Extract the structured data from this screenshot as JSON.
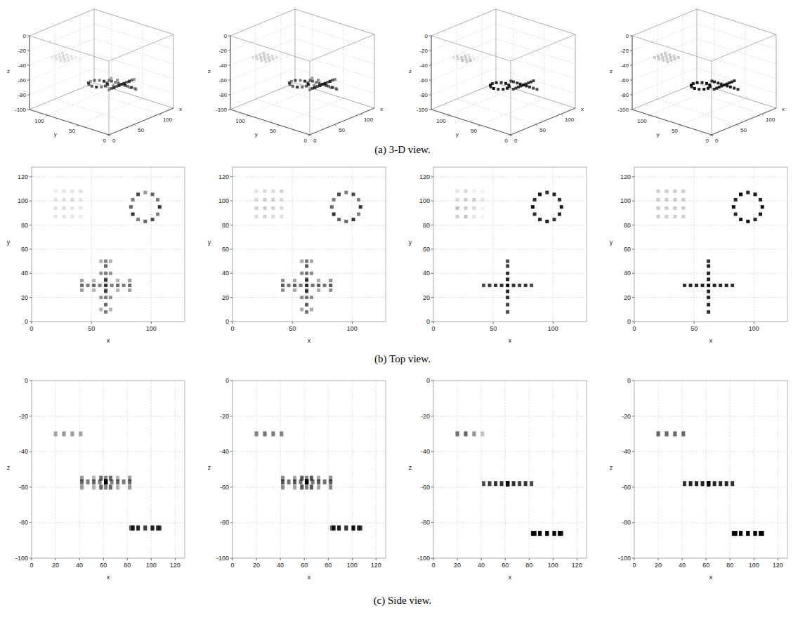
{
  "chart_data": [
    {
      "type": "scatter3d",
      "xlabel": "x",
      "ylabel": "y",
      "zlabel": "z",
      "xlim": [
        0,
        128
      ],
      "ylim": [
        0,
        128
      ],
      "zlim": [
        -100,
        0
      ],
      "grid": true,
      "series": [
        {
          "x": [
            20,
            27,
            34,
            41,
            20,
            27,
            34,
            41,
            20,
            27,
            34,
            41,
            20,
            27,
            34,
            41
          ],
          "y": [
            87,
            87,
            87,
            87,
            94,
            94,
            94,
            94,
            101,
            101,
            101,
            101,
            108,
            108,
            108,
            108
          ],
          "z": [
            -30,
            -30,
            -30,
            -30,
            -30,
            -30,
            -30,
            -30,
            -30,
            -30,
            -30,
            -30,
            -30,
            -30,
            -30,
            -30
          ],
          "values": [
            0.1,
            0.12,
            0.1,
            0.08,
            0.12,
            0.15,
            0.1,
            0.1,
            0.1,
            0.12,
            0.14,
            0.1,
            0.08,
            0.1,
            0.1,
            0.12
          ]
        },
        {
          "x": [
            107,
            105.4,
            101,
            95,
            89,
            84.6,
            83,
            84.6,
            89,
            95,
            101,
            105.4
          ],
          "y": [
            95,
            101,
            105.4,
            107,
            105.4,
            101,
            95,
            89,
            84.6,
            83,
            84.6,
            89
          ],
          "z": [
            -83,
            -83,
            -83,
            -83,
            -83,
            -83,
            -83,
            -83,
            -83,
            -83,
            -83,
            -83
          ],
          "values": [
            0.8,
            0.5,
            0.6,
            0.4,
            0.7,
            0.5,
            0.6,
            0.8,
            0.5,
            0.6,
            0.7,
            0.5
          ]
        },
        {
          "x": [
            42,
            47,
            52,
            57,
            62,
            67,
            72,
            77,
            82,
            62,
            62,
            62,
            62,
            62,
            62,
            62,
            62,
            42,
            52,
            62,
            72,
            82,
            42,
            52,
            62,
            72,
            82,
            58,
            58,
            58,
            58,
            66,
            66,
            66,
            66
          ],
          "y": [
            30,
            30,
            30,
            30,
            30,
            30,
            30,
            30,
            30,
            8,
            14,
            20,
            25,
            35,
            40,
            46,
            50,
            26,
            26,
            26,
            26,
            26,
            34,
            34,
            34,
            34,
            34,
            10,
            20,
            40,
            50,
            10,
            20,
            40,
            50
          ],
          "z": [
            -57,
            -57,
            -57,
            -57,
            -57,
            -57,
            -57,
            -57,
            -57,
            -57,
            -57,
            -57,
            -57,
            -57,
            -57,
            -57,
            -57,
            -55,
            -55,
            -55,
            -55,
            -55,
            -60,
            -60,
            -60,
            -60,
            -60,
            -55,
            -55,
            -60,
            -60,
            -60,
            -60,
            -55,
            -55
          ],
          "values": [
            0.6,
            0.5,
            0.6,
            0.5,
            0.8,
            0.5,
            0.6,
            0.5,
            0.6,
            0.5,
            0.6,
            0.5,
            0.6,
            0.6,
            0.5,
            0.6,
            0.5,
            0.4,
            0.3,
            0.5,
            0.3,
            0.4,
            0.4,
            0.3,
            0.5,
            0.3,
            0.4,
            0.3,
            0.4,
            0.4,
            0.3,
            0.3,
            0.4,
            0.4,
            0.3
          ]
        }
      ]
    },
    {
      "type": "scatter3d",
      "xlabel": "x",
      "ylabel": "y",
      "zlabel": "z",
      "xlim": [
        0,
        128
      ],
      "ylim": [
        0,
        128
      ],
      "zlim": [
        -100,
        0
      ],
      "grid": true,
      "series": [
        {
          "x": [
            20,
            27,
            34,
            41,
            20,
            27,
            34,
            41,
            20,
            27,
            34,
            41,
            20,
            27,
            34,
            41
          ],
          "y": [
            87,
            87,
            87,
            87,
            94,
            94,
            94,
            94,
            101,
            101,
            101,
            101,
            108,
            108,
            108,
            108
          ],
          "z": [
            -30,
            -30,
            -30,
            -30,
            -30,
            -30,
            -30,
            -30,
            -30,
            -30,
            -30,
            -30,
            -30,
            -30,
            -30,
            -30
          ],
          "values": [
            0.15,
            0.18,
            0.15,
            0.12,
            0.18,
            0.2,
            0.18,
            0.15,
            0.15,
            0.2,
            0.18,
            0.15,
            0.12,
            0.15,
            0.15,
            0.18
          ]
        },
        {
          "x": [
            107,
            105.4,
            101,
            95,
            89,
            84.6,
            83,
            84.6,
            89,
            95,
            101,
            105.4
          ],
          "y": [
            95,
            101,
            105.4,
            107,
            105.4,
            101,
            95,
            89,
            84.6,
            83,
            84.6,
            89
          ],
          "z": [
            -83,
            -83,
            -83,
            -83,
            -83,
            -83,
            -83,
            -83,
            -83,
            -83,
            -83,
            -83
          ],
          "values": [
            0.8,
            0.5,
            0.7,
            0.5,
            0.7,
            0.5,
            0.6,
            0.8,
            0.6,
            0.6,
            0.8,
            0.5
          ]
        },
        {
          "x": [
            42,
            47,
            52,
            57,
            62,
            67,
            72,
            77,
            82,
            62,
            62,
            62,
            62,
            62,
            62,
            62,
            62,
            42,
            52,
            62,
            72,
            82,
            42,
            52,
            62,
            72,
            82,
            58,
            58,
            58,
            58,
            66,
            66,
            66,
            66
          ],
          "y": [
            30,
            30,
            30,
            30,
            30,
            30,
            30,
            30,
            30,
            8,
            14,
            20,
            25,
            35,
            40,
            46,
            50,
            26,
            26,
            26,
            26,
            26,
            34,
            34,
            34,
            34,
            34,
            10,
            20,
            40,
            50,
            10,
            20,
            40,
            50
          ],
          "z": [
            -57,
            -57,
            -57,
            -57,
            -57,
            -57,
            -57,
            -57,
            -57,
            -57,
            -57,
            -57,
            -57,
            -57,
            -57,
            -57,
            -57,
            -55,
            -55,
            -55,
            -55,
            -55,
            -60,
            -60,
            -60,
            -60,
            -60,
            -55,
            -55,
            -60,
            -60,
            -60,
            -60,
            -55,
            -55
          ],
          "values": [
            0.65,
            0.55,
            0.65,
            0.55,
            0.85,
            0.55,
            0.65,
            0.55,
            0.65,
            0.55,
            0.65,
            0.55,
            0.65,
            0.65,
            0.55,
            0.65,
            0.55,
            0.45,
            0.35,
            0.5,
            0.35,
            0.45,
            0.45,
            0.35,
            0.5,
            0.35,
            0.45,
            0.35,
            0.45,
            0.45,
            0.35,
            0.35,
            0.45,
            0.45,
            0.35
          ]
        }
      ]
    },
    {
      "type": "scatter3d",
      "xlabel": "x",
      "ylabel": "y",
      "zlabel": "z",
      "xlim": [
        0,
        128
      ],
      "ylim": [
        0,
        128
      ],
      "zlim": [
        -100,
        0
      ],
      "grid": true,
      "series": [
        {
          "x": [
            20,
            27,
            34,
            41,
            20,
            27,
            34,
            41,
            20,
            27,
            34,
            41,
            20,
            27,
            34,
            41
          ],
          "y": [
            87,
            87,
            87,
            87,
            94,
            94,
            94,
            94,
            101,
            101,
            101,
            101,
            108,
            108,
            108,
            108
          ],
          "z": [
            -30,
            -30,
            -30,
            -30,
            -30,
            -30,
            -30,
            -30,
            -30,
            -30,
            -30,
            -30,
            -30,
            -30,
            -30,
            -30
          ],
          "values": [
            0.2,
            0.25,
            0.1,
            0.05,
            0.25,
            0.2,
            0.15,
            0.05,
            0.15,
            0.2,
            0.2,
            0.1,
            0.1,
            0.15,
            0.05,
            0.05
          ]
        },
        {
          "x": [
            107,
            105.4,
            101,
            95,
            89,
            84.6,
            83,
            84.6,
            89,
            95,
            101,
            105.4
          ],
          "y": [
            95,
            101,
            105.4,
            107,
            105.4,
            101,
            95,
            89,
            84.6,
            83,
            84.6,
            89
          ],
          "z": [
            -86,
            -86,
            -86,
            -86,
            -86,
            -86,
            -86,
            -86,
            -86,
            -86,
            -86,
            -86
          ],
          "values": [
            0.9,
            0.8,
            0.85,
            0.8,
            0.9,
            0.8,
            0.95,
            0.8,
            0.85,
            0.9,
            0.8,
            0.85
          ]
        },
        {
          "x": [
            42,
            47,
            52,
            57,
            62,
            67,
            72,
            77,
            82,
            62,
            62,
            62,
            62,
            62,
            62,
            62,
            62
          ],
          "y": [
            30,
            30,
            30,
            30,
            30,
            30,
            30,
            30,
            30,
            8,
            14,
            20,
            25,
            35,
            40,
            46,
            50
          ],
          "z": [
            -58,
            -58,
            -58,
            -58,
            -58,
            -58,
            -58,
            -58,
            -58,
            -58,
            -58,
            -58,
            -58,
            -58,
            -58,
            -58,
            -58
          ],
          "values": [
            0.7,
            0.75,
            0.8,
            0.8,
            0.95,
            0.8,
            0.75,
            0.8,
            0.7,
            0.7,
            0.75,
            0.8,
            0.85,
            0.85,
            0.8,
            0.75,
            0.7
          ]
        }
      ]
    },
    {
      "type": "scatter3d",
      "xlabel": "x",
      "ylabel": "y",
      "zlabel": "z",
      "xlim": [
        0,
        128
      ],
      "ylim": [
        0,
        128
      ],
      "zlim": [
        -100,
        0
      ],
      "grid": true,
      "series": [
        {
          "x": [
            20,
            27,
            34,
            41,
            20,
            27,
            34,
            41,
            20,
            27,
            34,
            41,
            20,
            27,
            34,
            41
          ],
          "y": [
            87,
            87,
            87,
            87,
            94,
            94,
            94,
            94,
            101,
            101,
            101,
            101,
            108,
            108,
            108,
            108
          ],
          "z": [
            -30,
            -30,
            -30,
            -30,
            -30,
            -30,
            -30,
            -30,
            -30,
            -30,
            -30,
            -30,
            -30,
            -30,
            -30,
            -30
          ],
          "values": [
            0.2,
            0.2,
            0.2,
            0.2,
            0.2,
            0.2,
            0.2,
            0.2,
            0.2,
            0.2,
            0.2,
            0.2,
            0.2,
            0.2,
            0.2,
            0.2
          ]
        },
        {
          "x": [
            107,
            105.4,
            101,
            95,
            89,
            84.6,
            83,
            84.6,
            89,
            95,
            101,
            105.4
          ],
          "y": [
            95,
            101,
            105.4,
            107,
            105.4,
            101,
            95,
            89,
            84.6,
            83,
            84.6,
            89
          ],
          "z": [
            -86,
            -86,
            -86,
            -86,
            -86,
            -86,
            -86,
            -86,
            -86,
            -86,
            -86,
            -86
          ],
          "values": [
            0.95,
            0.85,
            0.9,
            0.85,
            0.95,
            0.85,
            0.95,
            0.85,
            0.9,
            0.95,
            0.85,
            0.9
          ]
        },
        {
          "x": [
            42,
            47,
            52,
            57,
            62,
            67,
            72,
            77,
            82,
            62,
            62,
            62,
            62,
            62,
            62,
            62,
            62
          ],
          "y": [
            30,
            30,
            30,
            30,
            30,
            30,
            30,
            30,
            30,
            8,
            14,
            20,
            25,
            35,
            40,
            46,
            50
          ],
          "z": [
            -58,
            -58,
            -58,
            -58,
            -58,
            -58,
            -58,
            -58,
            -58,
            -58,
            -58,
            -58,
            -58,
            -58,
            -58,
            -58,
            -58
          ],
          "values": [
            0.8,
            0.85,
            0.85,
            0.85,
            0.95,
            0.85,
            0.85,
            0.85,
            0.8,
            0.8,
            0.85,
            0.85,
            0.85,
            0.85,
            0.85,
            0.85,
            0.8
          ]
        }
      ]
    }
  ],
  "views": [
    {
      "caption": "(a) 3-D view.",
      "xticks": [
        0,
        50,
        100
      ],
      "yticks": [
        0,
        50,
        100
      ],
      "zticks": [
        0,
        -20,
        -40,
        -60,
        -80,
        -100
      ]
    },
    {
      "caption": "(b) Top view.",
      "xticks": [
        0,
        50,
        100
      ],
      "yticks": [
        0,
        20,
        40,
        60,
        80,
        100,
        120
      ]
    },
    {
      "caption": "(c) Side view.",
      "xticks": [
        0,
        20,
        40,
        60,
        80,
        100,
        120
      ],
      "zticks": [
        0,
        -20,
        -40,
        -60,
        -80,
        -100
      ]
    }
  ]
}
